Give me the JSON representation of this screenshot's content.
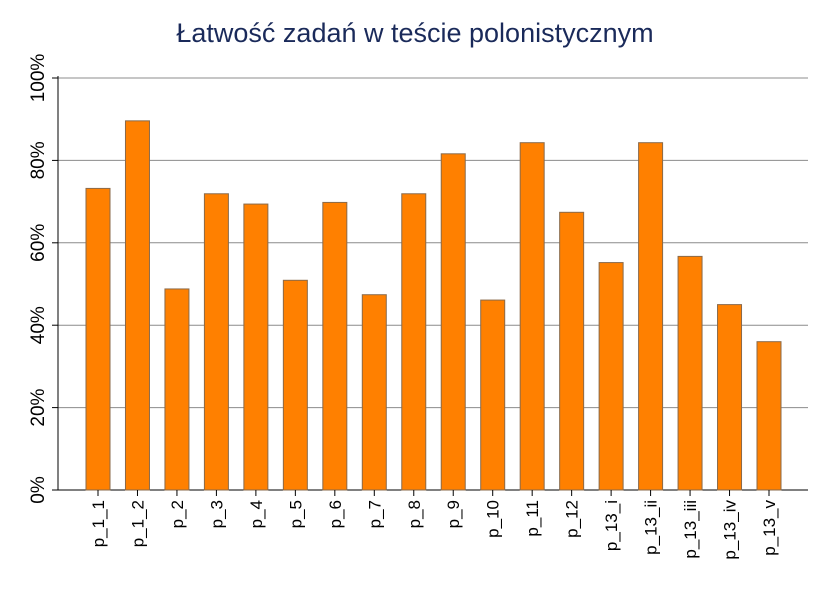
{
  "chart_data": {
    "type": "bar",
    "title": "Łatwość zadań w teście polonistycznym",
    "xlabel": "",
    "ylabel": "",
    "ylim": [
      0,
      100
    ],
    "yticks": [
      0,
      20,
      40,
      60,
      80,
      100
    ],
    "ytick_labels": [
      "0%",
      "20%",
      "40%",
      "60%",
      "80%",
      "100%"
    ],
    "grid": true,
    "categories": [
      "p_1_1",
      "p_1_2",
      "p_2",
      "p_3",
      "p_4",
      "p_5",
      "p_6",
      "p_7",
      "p_8",
      "p_9",
      "p_10",
      "p_11",
      "p_12",
      "p_13_i",
      "p_13_ii",
      "p_13_iii",
      "p_13_iv",
      "p_13_v"
    ],
    "values": [
      73.2,
      89.6,
      48.8,
      71.9,
      69.4,
      50.9,
      69.8,
      47.4,
      71.9,
      81.6,
      46.1,
      84.3,
      67.4,
      55.2,
      84.3,
      56.7,
      45.0,
      36.0
    ],
    "colors": {
      "bar": "#ff8000",
      "bar_edge": "#8a6a4a",
      "grid": "#8c8c8c",
      "title": "#1a2a5a"
    }
  }
}
